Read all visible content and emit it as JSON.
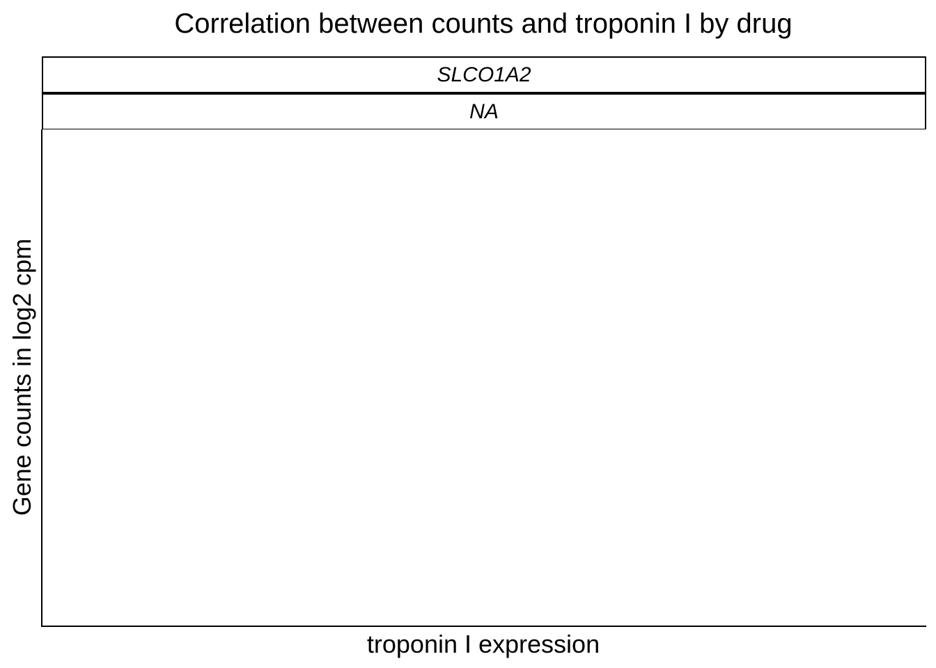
{
  "chart_data": {
    "type": "scatter",
    "title": "Correlation between counts and troponin I by drug",
    "facets": {
      "rows": [
        "SLCO1A2",
        "NA"
      ]
    },
    "xlabel": "troponin I expression",
    "ylabel": "Gene counts in log2 cpm",
    "series": [],
    "grid": false,
    "legend": "none"
  }
}
